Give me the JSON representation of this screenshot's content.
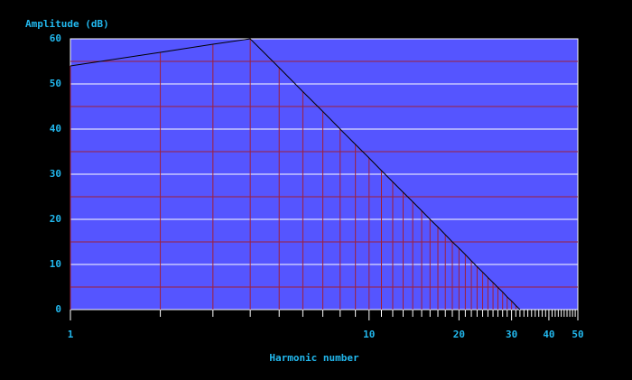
{
  "chart_data": {
    "type": "stem",
    "title": "Amplitude (dB)",
    "xlabel": "Harmonic number",
    "x": [
      1,
      2,
      3,
      4,
      5,
      6,
      7,
      8,
      9,
      10,
      11,
      12,
      13,
      14,
      15,
      16,
      17,
      18,
      19,
      20,
      21,
      22,
      23,
      24,
      25,
      26,
      27,
      28,
      29,
      30,
      31,
      32
    ],
    "values": [
      54,
      57,
      58.8,
      60,
      53.6,
      48.3,
      43.9,
      40,
      36.6,
      33.6,
      30.8,
      28.3,
      26.0,
      23.9,
      21.9,
      20,
      18.3,
      16.6,
      15.0,
      13.6,
      12.2,
      10.8,
      9.5,
      8.3,
      7.1,
      6.0,
      4.9,
      3.9,
      2.8,
      1.9,
      0.9,
      0
    ],
    "stem_color": "#a0203a",
    "line_color": "#000000",
    "xlim": [
      1,
      50
    ],
    "xscale": "log",
    "xticks": [
      1,
      10,
      20,
      30,
      40,
      50
    ],
    "xminor": [
      2,
      3,
      4,
      5,
      6,
      7,
      8,
      9,
      11,
      12,
      13,
      14,
      15,
      16,
      17,
      18,
      19,
      21,
      22,
      23,
      24,
      25,
      26,
      27,
      28,
      29,
      31,
      32,
      33,
      34,
      35,
      36,
      37,
      38,
      39,
      41,
      42,
      43,
      44,
      45,
      46,
      47,
      48,
      49
    ],
    "ylim": [
      0,
      60
    ],
    "yticks": [
      0,
      10,
      20,
      30,
      40,
      50,
      60
    ],
    "yminor": [
      5,
      15,
      25,
      35,
      45,
      55
    ],
    "grid": true
  }
}
